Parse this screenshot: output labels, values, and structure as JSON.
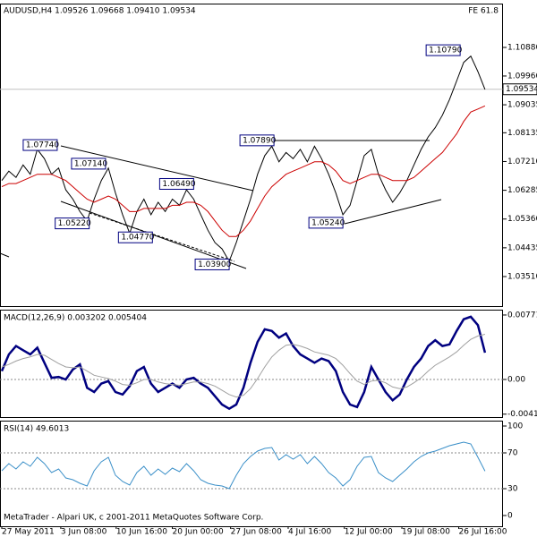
{
  "chart_data": [
    {
      "type": "line",
      "title": "AUDUSD,H4 1.09526 1.09668 1.09410 1.09534",
      "subtitle": "FE 61.8",
      "ylim": [
        1.0256,
        1.1229
      ],
      "yticks": [
        {
          "value": 1.1088,
          "label": "1.10880"
        },
        {
          "value": 1.0996,
          "label": "1.09960"
        },
        {
          "value": 1.09035,
          "label": "1.09035"
        },
        {
          "value": 1.08135,
          "label": "1.08135"
        },
        {
          "value": 1.0721,
          "label": "1.07210"
        },
        {
          "value": 1.06285,
          "label": "1.06285"
        },
        {
          "value": 1.0536,
          "label": "1.05360"
        },
        {
          "value": 1.04435,
          "label": "1.04435"
        },
        {
          "value": 1.0351,
          "label": "1.03510"
        }
      ],
      "xlim": [
        0,
        70
      ],
      "xticks": [
        {
          "value": 0,
          "label": "27 May 2011"
        },
        {
          "value": 8.3,
          "label": "3 Jun 08:00"
        },
        {
          "value": 16.1,
          "label": "10 Jun 16:00"
        },
        {
          "value": 24,
          "label": "20 Jun 00:00"
        },
        {
          "value": 32.2,
          "label": "27 Jun 08:00"
        },
        {
          "value": 40.3,
          "label": "4 Jul 16:00"
        },
        {
          "value": 48.2,
          "label": "12 Jul 00:00"
        },
        {
          "value": 56.3,
          "label": "19 Jul 08:00"
        },
        {
          "value": 64.3,
          "label": "26 Jul 16:00"
        }
      ],
      "last": {
        "value": 1.09534,
        "label": "1.09534"
      },
      "series": [
        {
          "color": "#000000",
          "values": [
            1.066,
            1.069,
            1.067,
            1.071,
            1.068,
            1.076,
            1.073,
            1.068,
            1.07,
            1.063,
            1.06,
            1.056,
            1.053,
            1.06,
            1.066,
            1.07,
            1.062,
            1.055,
            1.049,
            1.056,
            1.06,
            1.055,
            1.059,
            1.056,
            1.06,
            1.058,
            1.063,
            1.06,
            1.055,
            1.05,
            1.046,
            1.044,
            1.04,
            1.046,
            1.053,
            1.06,
            1.068,
            1.074,
            1.077,
            1.072,
            1.075,
            1.073,
            1.076,
            1.072,
            1.077,
            1.073,
            1.068,
            1.062,
            1.055,
            1.058,
            1.066,
            1.074,
            1.076,
            1.068,
            1.063,
            1.059,
            1.062,
            1.066,
            1.071,
            1.076,
            1.08,
            1.083,
            1.087,
            1.092,
            1.098,
            1.104,
            1.106,
            1.101,
            1.0953
          ]
        },
        {
          "color": "#cc0000",
          "values": [
            1.064,
            1.065,
            1.065,
            1.066,
            1.067,
            1.068,
            1.068,
            1.068,
            1.067,
            1.066,
            1.064,
            1.062,
            1.06,
            1.059,
            1.06,
            1.061,
            1.06,
            1.058,
            1.056,
            1.056,
            1.057,
            1.057,
            1.057,
            1.057,
            1.058,
            1.058,
            1.059,
            1.059,
            1.058,
            1.056,
            1.053,
            1.05,
            1.048,
            1.048,
            1.05,
            1.053,
            1.057,
            1.061,
            1.064,
            1.066,
            1.068,
            1.069,
            1.07,
            1.071,
            1.072,
            1.072,
            1.071,
            1.069,
            1.066,
            1.065,
            1.066,
            1.067,
            1.068,
            1.068,
            1.067,
            1.066,
            1.066,
            1.066,
            1.067,
            1.069,
            1.071,
            1.073,
            1.075,
            1.078,
            1.081,
            1.085,
            1.088,
            1.089,
            1.09
          ]
        }
      ],
      "annotations": [
        {
          "x": 7.8,
          "y": 1.0774,
          "label": "1.07740"
        },
        {
          "x": 14.6,
          "y": 1.0714,
          "label": "1.07140"
        },
        {
          "x": 27,
          "y": 1.0649,
          "label": "1.06490"
        },
        {
          "x": 12.3,
          "y": 1.0522,
          "label": "1.05220"
        },
        {
          "x": 21.2,
          "y": 1.0477,
          "label": "1.04770"
        },
        {
          "x": 32,
          "y": 1.039,
          "label": "1.03900"
        },
        {
          "x": 38.3,
          "y": 1.0789,
          "label": "1.07890"
        },
        {
          "x": 48,
          "y": 1.0524,
          "label": "1.05240"
        },
        {
          "x": 64.5,
          "y": 1.1079,
          "label": "1.10790"
        }
      ]
    },
    {
      "type": "line",
      "title": "MACD(12,26,9) 0.003202 0.005404",
      "ylim": [
        -0.0045,
        0.00835
      ],
      "yticks": [
        0.007712,
        {
          "value": 0,
          "label": "0.00"
        },
        -0.00415
      ],
      "zero_line": 0,
      "series": [
        {
          "color": "#000080",
          "values": [
            0.001,
            0.003,
            0.004,
            0.0035,
            0.003,
            0.0038,
            0.002,
            0.0002,
            0.0003,
            0.0,
            0.0012,
            0.0018,
            -0.001,
            -0.0015,
            -0.0005,
            -0.0002,
            -0.0015,
            -0.0018,
            -0.0008,
            0.001,
            0.0015,
            -0.0005,
            -0.0015,
            -0.001,
            -0.0005,
            -0.001,
            0.0,
            0.0002,
            -0.0005,
            -0.001,
            -0.002,
            -0.003,
            -0.0035,
            -0.003,
            -0.001,
            0.002,
            0.0045,
            0.006,
            0.0058,
            0.005,
            0.0055,
            0.004,
            0.003,
            0.0025,
            0.002,
            0.0025,
            0.0022,
            0.001,
            -0.0015,
            -0.003,
            -0.0033,
            -0.0015,
            0.0015,
            0.0,
            -0.0015,
            -0.0025,
            -0.0018,
            0.0,
            0.0015,
            0.0025,
            0.004,
            0.0047,
            0.004,
            0.0042,
            0.0058,
            0.0072,
            0.0075,
            0.0065,
            0.0032
          ]
        },
        {
          "color": "#a0a0a0",
          "values": [
            0.0015,
            0.0018,
            0.0022,
            0.0025,
            0.0027,
            0.003,
            0.0029,
            0.0024,
            0.0019,
            0.0015,
            0.0014,
            0.0015,
            0.001,
            0.0005,
            0.0003,
            0.0001,
            -0.0002,
            -0.0006,
            -0.0007,
            -0.0004,
            0.0,
            0.0,
            -0.0003,
            -0.0005,
            -0.0006,
            -0.0007,
            -0.0005,
            -0.0003,
            -0.0003,
            -0.0005,
            -0.0008,
            -0.0013,
            -0.0018,
            -0.0021,
            -0.0019,
            -0.0011,
            0.0001,
            0.0015,
            0.0027,
            0.0035,
            0.0041,
            0.0042,
            0.004,
            0.0037,
            0.0033,
            0.0031,
            0.0029,
            0.0025,
            0.0017,
            0.0007,
            -0.0002,
            -0.0006,
            -0.0002,
            -0.0001,
            -0.0004,
            -0.0009,
            -0.0011,
            -0.0009,
            -0.0004,
            0.0002,
            0.001,
            0.0017,
            0.0022,
            0.0027,
            0.0033,
            0.0041,
            0.0048,
            0.0052,
            0.0054
          ]
        }
      ]
    },
    {
      "type": "line",
      "title": "RSI(14) 49.6013",
      "footer": "MetaTrader - Alpari UK, c 2001-2011 MetaQuotes Software Corp.",
      "ylim": [
        -12,
        106
      ],
      "yticks": [
        100,
        70,
        30,
        0
      ],
      "levels": [
        70,
        30
      ],
      "series": [
        {
          "color": "#3a8fc8",
          "values": [
            50,
            58,
            52,
            60,
            55,
            65,
            58,
            48,
            52,
            42,
            40,
            36,
            33,
            50,
            60,
            65,
            45,
            38,
            34,
            48,
            55,
            45,
            52,
            46,
            53,
            49,
            58,
            50,
            40,
            36,
            34,
            33,
            30,
            45,
            58,
            66,
            72,
            75,
            76,
            62,
            68,
            63,
            68,
            58,
            66,
            58,
            48,
            42,
            33,
            40,
            55,
            65,
            66,
            48,
            42,
            38,
            45,
            52,
            60,
            66,
            70,
            72,
            75,
            78,
            80,
            82,
            80,
            65,
            49.6
          ]
        }
      ]
    }
  ]
}
